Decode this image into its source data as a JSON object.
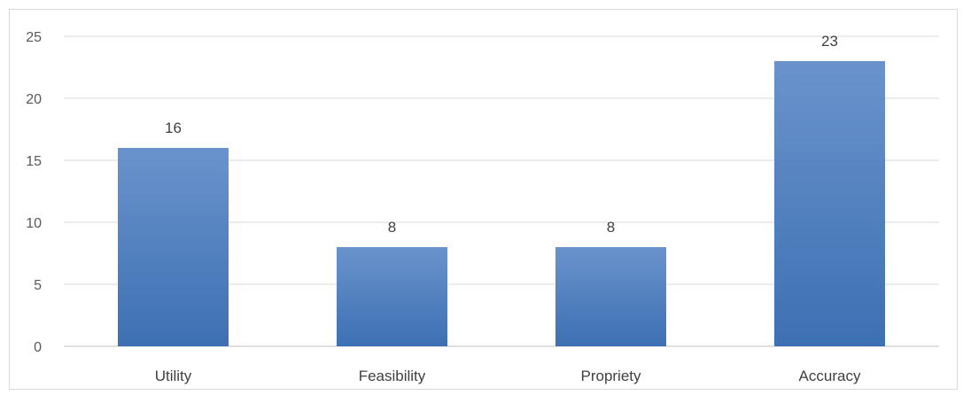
{
  "chart_data": {
    "type": "bar",
    "categories": [
      "Utility",
      "Feasibility",
      "Propriety",
      "Accuracy"
    ],
    "values": [
      16,
      8,
      8,
      23
    ],
    "data_labels": [
      "16",
      "8",
      "8",
      "23"
    ],
    "yticks": [
      "0",
      "5",
      "10",
      "15",
      "20",
      "25"
    ],
    "ylim": [
      0,
      25
    ],
    "title": "",
    "xlabel": "",
    "ylabel": "",
    "grid": true,
    "legend": "none",
    "bar_color": "#4a7ebf",
    "bar_color_light": "#6a93cc",
    "bar_color_dark": "#3d70b3"
  }
}
